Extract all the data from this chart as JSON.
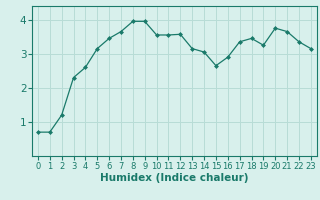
{
  "x": [
    0,
    1,
    2,
    3,
    4,
    5,
    6,
    7,
    8,
    9,
    10,
    11,
    12,
    13,
    14,
    15,
    16,
    17,
    18,
    19,
    20,
    21,
    22,
    23
  ],
  "y": [
    0.7,
    0.7,
    1.2,
    2.3,
    2.6,
    3.15,
    3.45,
    3.65,
    3.95,
    3.95,
    3.55,
    3.55,
    3.57,
    3.15,
    3.05,
    2.65,
    2.9,
    3.35,
    3.45,
    3.25,
    3.75,
    3.65,
    3.35,
    3.15
  ],
  "line_color": "#1a7a6a",
  "marker": "D",
  "marker_size": 2,
  "bg_color": "#d8f0ec",
  "grid_color": "#b8dcd6",
  "xlabel": "Humidex (Indice chaleur)",
  "ylim": [
    0,
    4.4
  ],
  "xlim": [
    -0.5,
    23.5
  ],
  "yticks": [
    1,
    2,
    3,
    4
  ],
  "xticks": [
    0,
    1,
    2,
    3,
    4,
    5,
    6,
    7,
    8,
    9,
    10,
    11,
    12,
    13,
    14,
    15,
    16,
    17,
    18,
    19,
    20,
    21,
    22,
    23
  ],
  "tick_color": "#1a7a6a",
  "xlabel_fontsize": 7.5,
  "tick_fontsize": 6.0,
  "ytick_fontsize": 7.5
}
